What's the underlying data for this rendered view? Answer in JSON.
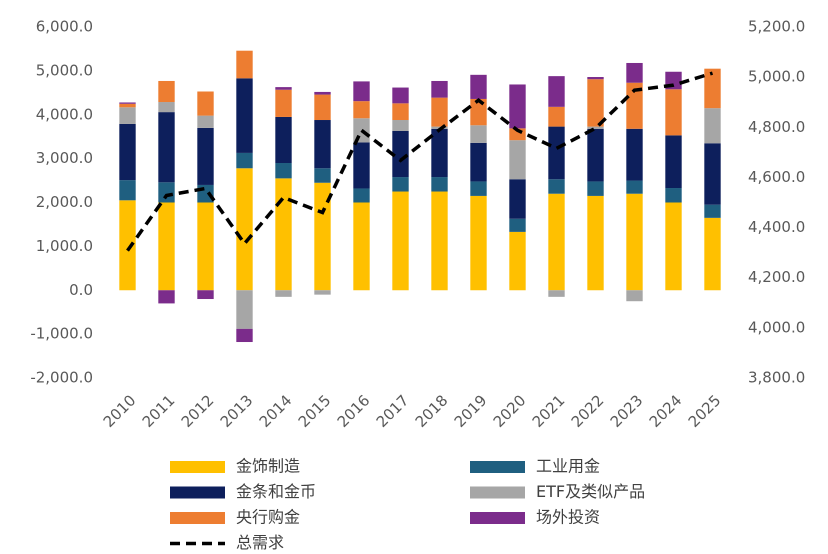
{
  "chart_data": {
    "type": "bar",
    "stacked": true,
    "categories": [
      "2010",
      "2011",
      "2012",
      "2013",
      "2014",
      "2015",
      "2016",
      "2017",
      "2018",
      "2019",
      "2020",
      "2021",
      "2022",
      "2023",
      "2024",
      "2025"
    ],
    "series": [
      {
        "name": "金饰制造",
        "color": "#FFC000",
        "values": [
          2050,
          2000,
          2000,
          2780,
          2550,
          2450,
          2000,
          2250,
          2250,
          2150,
          1330,
          2200,
          2150,
          2200,
          2000,
          1650
        ]
      },
      {
        "name": "工业用金",
        "color": "#1F5F80",
        "values": [
          460,
          460,
          400,
          350,
          350,
          330,
          320,
          330,
          330,
          330,
          300,
          330,
          330,
          300,
          330,
          300
        ]
      },
      {
        "name": "金条和金币",
        "color": "#0D1F5C",
        "values": [
          1280,
          1600,
          1300,
          1700,
          1050,
          1100,
          1050,
          1050,
          1100,
          880,
          900,
          1200,
          1200,
          1180,
          1200,
          1400
        ]
      },
      {
        "name": "ETF及类似产品",
        "color": "#A6A6A6",
        "values": [
          380,
          230,
          280,
          -880,
          -150,
          -100,
          550,
          250,
          50,
          400,
          890,
          -150,
          50,
          -250,
          0,
          800
        ]
      },
      {
        "name": "央行购金",
        "color": "#ED7D31",
        "values": [
          80,
          480,
          550,
          630,
          620,
          580,
          390,
          380,
          660,
          600,
          270,
          450,
          1080,
          1050,
          1050,
          900
        ]
      },
      {
        "name": "场外投资",
        "color": "#7B2C8B",
        "values": [
          30,
          -300,
          -200,
          -300,
          60,
          60,
          450,
          360,
          380,
          550,
          1000,
          700,
          50,
          450,
          400,
          0
        ]
      },
      {
        "name": "总需求",
        "color": "#000000",
        "axis": "y2",
        "line_style": "dashed",
        "values": [
          4308,
          4528,
          4556,
          4336,
          4520,
          4460,
          4788,
          4668,
          4790,
          4908,
          4788,
          4716,
          4796,
          4948,
          4968,
          5016
        ]
      }
    ],
    "ylim": [
      -2000,
      6000
    ],
    "yticks": [
      {
        "value": -2000,
        "label": "-2,000.0"
      },
      {
        "value": -1000,
        "label": "-1,000.0"
      },
      {
        "value": 0,
        "label": "0.0"
      },
      {
        "value": 1000,
        "label": "1,000.0"
      },
      {
        "value": 2000,
        "label": "2,000.0"
      },
      {
        "value": 3000,
        "label": "3,000.0"
      },
      {
        "value": 4000,
        "label": "4,000.0"
      },
      {
        "value": 5000,
        "label": "5,000.0"
      },
      {
        "value": 6000,
        "label": "6,000.0"
      }
    ],
    "y2lim": [
      3800,
      5200
    ],
    "y2ticks": [
      {
        "value": 3800,
        "label": "3,800.0"
      },
      {
        "value": 4000,
        "label": "4,000.0"
      },
      {
        "value": 4200,
        "label": "4,200.0"
      },
      {
        "value": 4400,
        "label": "4,400.0"
      },
      {
        "value": 4600,
        "label": "4,600.0"
      },
      {
        "value": 4800,
        "label": "4,800.0"
      },
      {
        "value": 5000,
        "label": "5,000.0"
      },
      {
        "value": 5200,
        "label": "5,200.0"
      }
    ],
    "grid": false,
    "legend": "bottom"
  }
}
